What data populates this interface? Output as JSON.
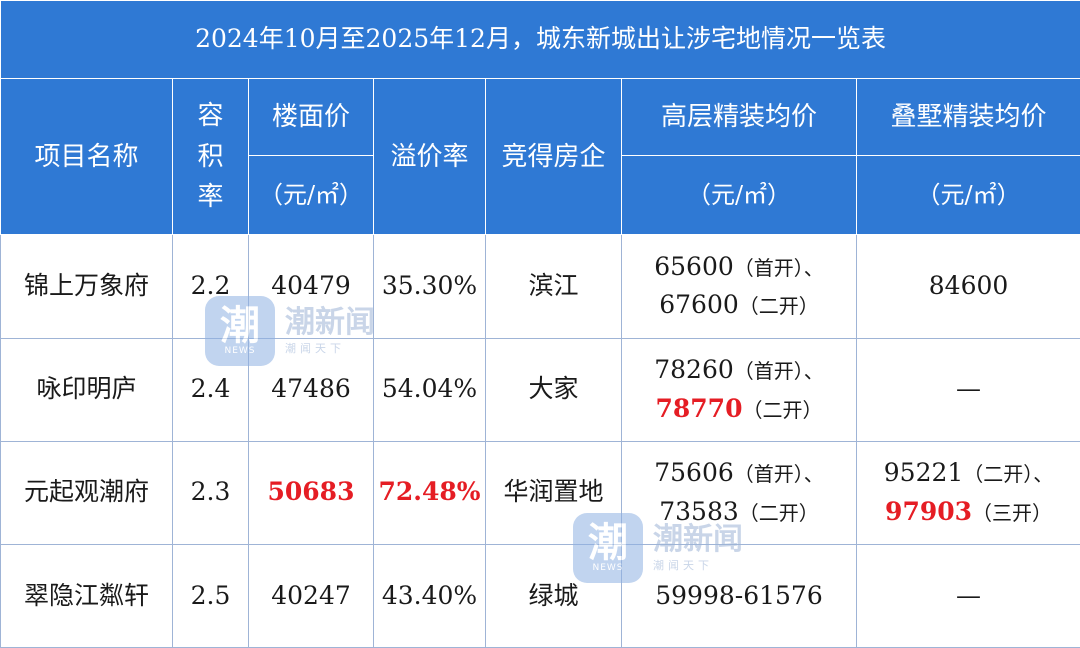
{
  "title": "2024年10月至2025年12月，城东新城出让涉宅地情况一览表",
  "headers": {
    "name": "项目名称",
    "far": "容积率",
    "floor_price": "楼面价",
    "floor_price_unit": "（元/㎡）",
    "premium": "溢价率",
    "developer": "竞得房企",
    "highrise": "高层精装均价",
    "highrise_unit": "（元/㎡）",
    "villa": "叠墅精装均价",
    "villa_unit": "（元/㎡）"
  },
  "rows": [
    {
      "name": "锦上万象府",
      "far": "2.2",
      "floor_price": "40479",
      "premium": "35.30%",
      "developer": "滨江",
      "highrise": [
        {
          "v": "65600",
          "t": "（首开）、"
        },
        {
          "v": "67600",
          "t": "（二开）"
        }
      ],
      "villa": [
        {
          "v": "84600",
          "t": ""
        }
      ]
    },
    {
      "name": "咏印明庐",
      "far": "2.4",
      "floor_price": "47486",
      "premium": "54.04%",
      "developer": "大家",
      "highrise": [
        {
          "v": "78260",
          "t": "（首开）、"
        },
        {
          "v": "78770",
          "t": "（二开）"
        }
      ],
      "villa": [
        {
          "v": "—",
          "t": ""
        }
      ]
    },
    {
      "name": "元起观潮府",
      "far": "2.3",
      "floor_price": "50683",
      "premium": "72.48%",
      "developer": "华润置地",
      "highrise": [
        {
          "v": "75606",
          "t": "（首开）、"
        },
        {
          "v": "73583",
          "t": "（二开）"
        }
      ],
      "villa": [
        {
          "v": "95221",
          "t": "（二开）、"
        },
        {
          "v": "97903",
          "t": "（三开）"
        }
      ]
    },
    {
      "name": "翠隐江粼轩",
      "far": "2.5",
      "floor_price": "40247",
      "premium": "43.40%",
      "developer": "绿城",
      "highrise": [
        {
          "v": "59998-61576",
          "t": ""
        }
      ],
      "villa": [
        {
          "v": "—",
          "t": ""
        }
      ]
    }
  ],
  "highlight_color": "#e51d24",
  "header_color": "#2f79d4",
  "watermark": {
    "logo_glyph": "潮",
    "logo_sub": "NEWS",
    "brand": "潮新闻",
    "tagline": "潮闻天下"
  }
}
